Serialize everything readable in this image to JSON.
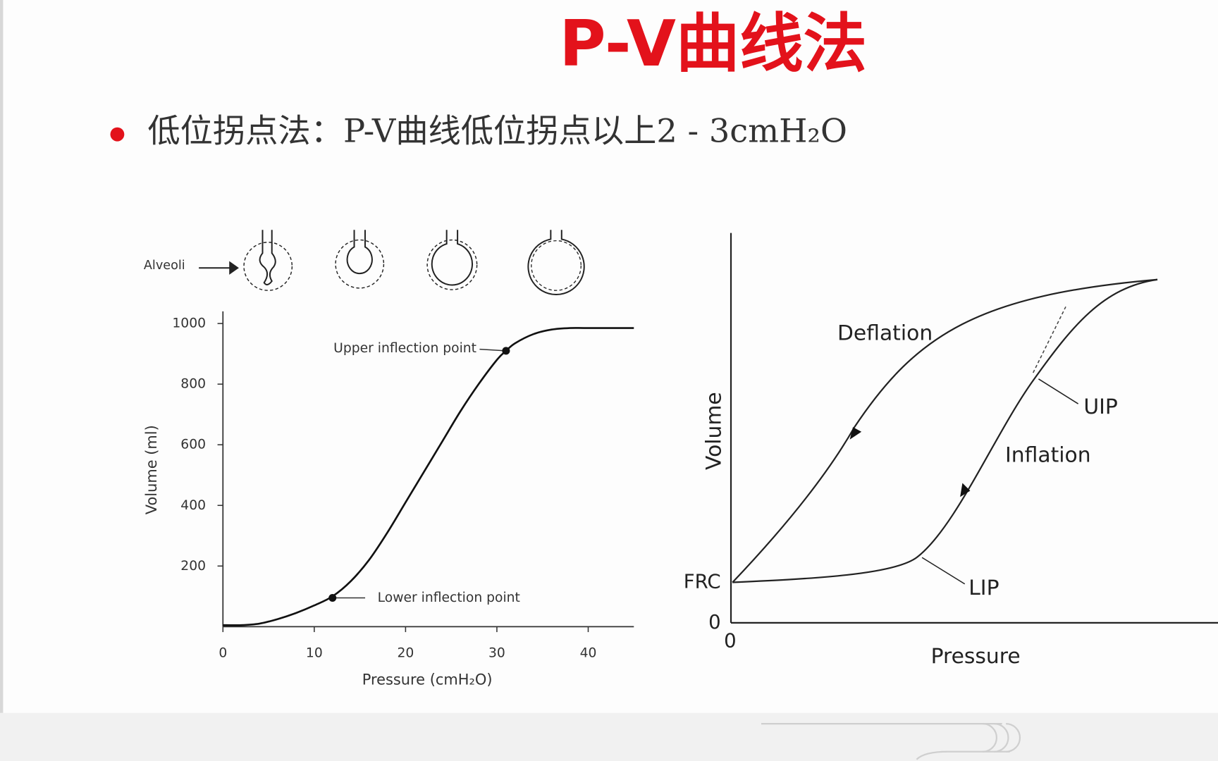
{
  "title": "P-V曲线法",
  "bullet": "低位拐点法：P-V曲线低位拐点以上2 - 3cmH₂O",
  "alveoli_label": "Alveoli",
  "chart_data": [
    {
      "type": "line",
      "x_label": "Pressure (cmH₂O)",
      "y_label": "Volume (ml)",
      "x": [
        0,
        2,
        4,
        6,
        8,
        10,
        12,
        14,
        16,
        18,
        20,
        22,
        24,
        26,
        28,
        30,
        31,
        32,
        34,
        36,
        38,
        40,
        45
      ],
      "values": [
        5,
        5,
        10,
        25,
        45,
        70,
        100,
        150,
        220,
        310,
        410,
        510,
        610,
        710,
        800,
        880,
        910,
        935,
        965,
        980,
        985,
        985,
        985
      ],
      "color": "#111111",
      "xlim": [
        0,
        45
      ],
      "ylim": [
        0,
        1040
      ],
      "xticks": [
        0,
        10,
        20,
        30,
        40
      ],
      "yticks": [
        200,
        400,
        600,
        800,
        1000
      ],
      "annotations": [
        {
          "label": "Upper inflection point",
          "x": 31,
          "y": 910
        },
        {
          "label": "Lower inflection point",
          "x": 12,
          "y": 95
        }
      ]
    }
  ],
  "schematic": {
    "y_label": "Volume",
    "x_label": "Pressure",
    "x_tick": "0",
    "y_tick": "0",
    "frc": "FRC",
    "deflation": "Deflation",
    "inflation": "Inflation",
    "uip": "UIP",
    "lip": "LIP"
  }
}
